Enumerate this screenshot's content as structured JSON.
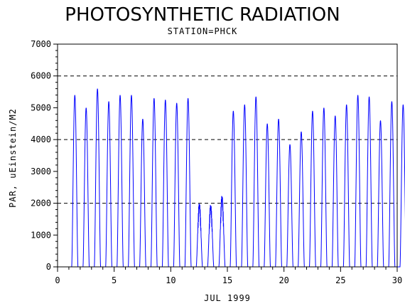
{
  "chart_data": {
    "type": "line",
    "title": "PHOTOSYNTHETIC RADIATION",
    "subtitle": "STATION=PHCK",
    "xlabel": "JUL 1999",
    "ylabel": "PAR, uEinstein/M2",
    "xlim": [
      0,
      30
    ],
    "ylim": [
      0,
      7000
    ],
    "x_ticks": [
      "0",
      "5",
      "10",
      "15",
      "20",
      "25",
      "30"
    ],
    "y_ticks": [
      "0",
      "1000",
      "2000",
      "3000",
      "4000",
      "5000",
      "6000",
      "7000"
    ],
    "reference_lines": [
      2000,
      4000,
      6000
    ],
    "grid": false,
    "legend": "none",
    "series": [
      {
        "color": "#0000ff",
        "daily_peaks": [
          {
            "day": 1,
            "peak": 5400
          },
          {
            "day": 2,
            "peak": 5000
          },
          {
            "day": 3,
            "peak": 5600
          },
          {
            "day": 4,
            "peak": 5200
          },
          {
            "day": 5,
            "peak": 5400
          },
          {
            "day": 6,
            "peak": 5400
          },
          {
            "day": 7,
            "peak": 4650
          },
          {
            "day": 8,
            "peak": 5300
          },
          {
            "day": 9,
            "peak": 5250
          },
          {
            "day": 10,
            "peak": 5150
          },
          {
            "day": 11,
            "peak": 5300
          },
          {
            "day": 12,
            "peak": 2100
          },
          {
            "day": 13,
            "peak": 2050
          },
          {
            "day": 14,
            "peak": 2350
          },
          {
            "day": 15,
            "peak": 4900
          },
          {
            "day": 16,
            "peak": 5100
          },
          {
            "day": 17,
            "peak": 5350
          },
          {
            "day": 18,
            "peak": 4500
          },
          {
            "day": 19,
            "peak": 4650
          },
          {
            "day": 20,
            "peak": 3850
          },
          {
            "day": 21,
            "peak": 4250
          },
          {
            "day": 22,
            "peak": 4900
          },
          {
            "day": 23,
            "peak": 5000
          },
          {
            "day": 24,
            "peak": 4750
          },
          {
            "day": 25,
            "peak": 5100
          },
          {
            "day": 26,
            "peak": 5400
          },
          {
            "day": 27,
            "peak": 5350
          },
          {
            "day": 28,
            "peak": 4600
          },
          {
            "day": 29,
            "peak": 5200
          },
          {
            "day": 30,
            "peak": 5100
          }
        ]
      }
    ]
  }
}
